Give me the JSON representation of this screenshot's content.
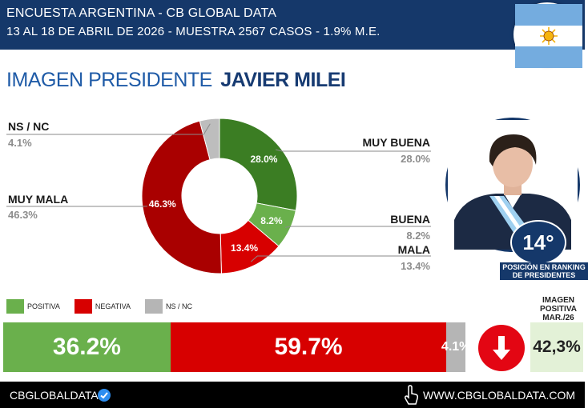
{
  "header": {
    "line1": "ENCUESTA ARGENTINA - CB GLOBAL DATA",
    "line2": "13 AL 18 DE ABRIL DE 2026 - MUESTRA 2567 CASOS - 1.9% M.E."
  },
  "title": {
    "main": "IMAGEN PRESIDENTE",
    "name": "JAVIER MILEI"
  },
  "chart_data": [
    {
      "type": "pie",
      "categories": [
        "MUY BUENA",
        "BUENA",
        "MALA",
        "MUY MALA",
        "NS / NC"
      ],
      "values": [
        28.0,
        8.2,
        13.4,
        46.3,
        4.1
      ],
      "inner_labels": [
        "28.0%",
        "8.2%",
        "13.4%",
        "46.3%",
        ""
      ],
      "outer_values": [
        "28.0%",
        "8.2%",
        "13.4%",
        "46.3%",
        "4.1%"
      ],
      "colors": [
        "#3b7d23",
        "#6ab04c",
        "#d70000",
        "#a90000",
        "#bdbdbd"
      ]
    },
    {
      "type": "bar",
      "stacked": true,
      "categories": [
        "POSITIVA",
        "NEGATIVA",
        "NS / NC"
      ],
      "values": [
        36.2,
        59.7,
        4.1
      ],
      "labels": [
        "36.2%",
        "59.7%",
        "4.1%"
      ],
      "colors": [
        "#6ab04c",
        "#d70000",
        "#b5b5b5"
      ]
    }
  ],
  "legend": [
    {
      "label": "POSITIVA",
      "color": "#6ab04c"
    },
    {
      "label": "NEGATIVA",
      "color": "#d70000"
    },
    {
      "label": "NS / NC",
      "color": "#b5b5b5"
    }
  ],
  "ranking": {
    "value": "14°",
    "label": "POSICIÓN EN RANKING DE PRESIDENTES"
  },
  "imagen_positiva": {
    "label": "IMAGEN POSITIVA MAR./26",
    "value": "42,3%"
  },
  "trend_icon": "down-arrow-icon",
  "footer": {
    "brand": "CBGLOBALDATA",
    "url": "WWW.CBGLOBALDATA.COM"
  },
  "theme": {
    "navy": "#15386a",
    "blue": "#1f5ba7"
  }
}
